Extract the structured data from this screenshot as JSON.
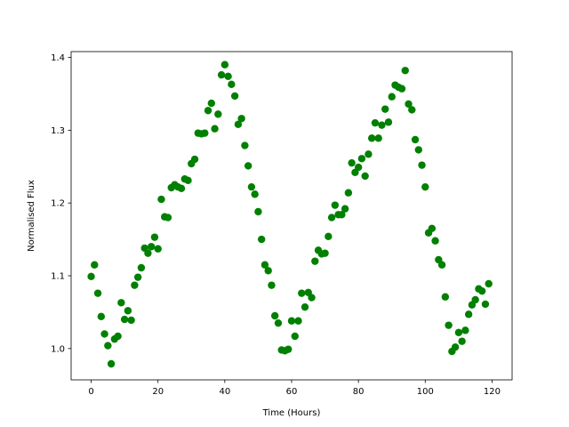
{
  "chart_data": {
    "type": "scatter",
    "title": "",
    "xlabel": "Time (Hours)",
    "ylabel": "Normalised Flux",
    "xlim": [
      -6,
      126
    ],
    "ylim": [
      0.957,
      1.408
    ],
    "xticks": [
      0,
      20,
      40,
      60,
      80,
      100,
      120
    ],
    "xtick_labels": [
      "0",
      "20",
      "40",
      "60",
      "80",
      "100",
      "120"
    ],
    "yticks": [
      1.0,
      1.1,
      1.2,
      1.3,
      1.4
    ],
    "ytick_labels": [
      "1.0",
      "1.1",
      "1.2",
      "1.3",
      "1.4"
    ],
    "grid": false,
    "legend": "none",
    "marker_color": "#008000",
    "series": [
      {
        "x": [
          0,
          1,
          2,
          3,
          4,
          5,
          6,
          7,
          8,
          9,
          10,
          11,
          12,
          13,
          14,
          15,
          16,
          17,
          18,
          19,
          20,
          21,
          22,
          23,
          24,
          25,
          26,
          27,
          28,
          29,
          30,
          31,
          32,
          33,
          34,
          35,
          36,
          37,
          38,
          39,
          40,
          41,
          42,
          43,
          44,
          45,
          46,
          47,
          48,
          49,
          50,
          51,
          52,
          53,
          54,
          55,
          56,
          57,
          58,
          59,
          60,
          61,
          62,
          63,
          64,
          65,
          66,
          67,
          68,
          69,
          70,
          71,
          72,
          73,
          74,
          75,
          76,
          77,
          78,
          79,
          80,
          81,
          82,
          83,
          84,
          85,
          86,
          87,
          88,
          89,
          90,
          91,
          92,
          93,
          94,
          95,
          96,
          97,
          98,
          99,
          100,
          101,
          102,
          103,
          104,
          105,
          106,
          107,
          108,
          109,
          110,
          111,
          112,
          113,
          114,
          115,
          116,
          117,
          118,
          119
        ],
        "y": [
          1.099,
          1.115,
          1.076,
          1.044,
          1.02,
          1.004,
          0.979,
          1.013,
          1.017,
          1.063,
          1.04,
          1.052,
          1.039,
          1.087,
          1.098,
          1.111,
          1.138,
          1.131,
          1.14,
          1.153,
          1.137,
          1.205,
          1.181,
          1.18,
          1.221,
          1.225,
          1.222,
          1.22,
          1.233,
          1.231,
          1.254,
          1.26,
          1.296,
          1.295,
          1.296,
          1.327,
          1.337,
          1.302,
          1.322,
          1.376,
          1.39,
          1.374,
          1.363,
          1.347,
          1.308,
          1.316,
          1.279,
          1.251,
          1.222,
          1.212,
          1.188,
          1.15,
          1.115,
          1.107,
          1.087,
          1.045,
          1.035,
          0.998,
          0.997,
          0.999,
          1.038,
          1.017,
          1.038,
          1.076,
          1.057,
          1.077,
          1.07,
          1.12,
          1.135,
          1.13,
          1.131,
          1.154,
          1.18,
          1.197,
          1.184,
          1.184,
          1.192,
          1.214,
          1.255,
          1.242,
          1.249,
          1.261,
          1.237,
          1.267,
          1.289,
          1.31,
          1.289,
          1.307,
          1.329,
          1.311,
          1.346,
          1.362,
          1.359,
          1.357,
          1.382,
          1.336,
          1.328,
          1.287,
          1.273,
          1.252,
          1.222,
          1.159,
          1.165,
          1.148,
          1.122,
          1.115,
          1.071,
          1.032,
          0.996,
          1.002,
          1.022,
          1.01,
          1.025,
          1.047,
          1.06,
          1.067,
          1.082,
          1.079,
          1.061,
          1.089
        ]
      }
    ]
  }
}
